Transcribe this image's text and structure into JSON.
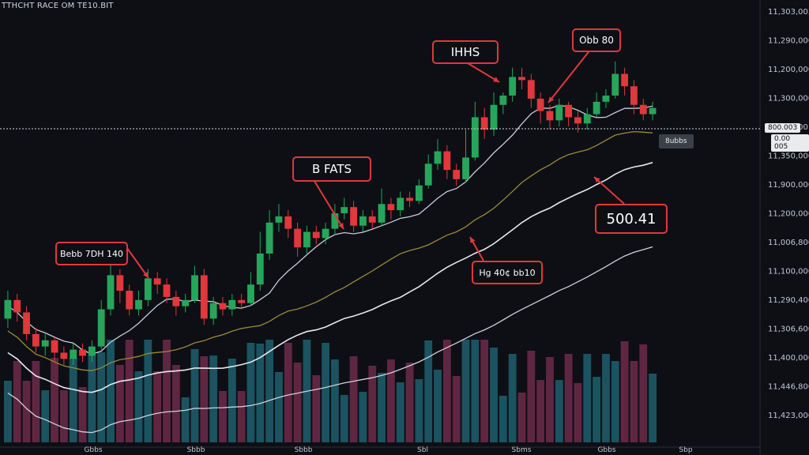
{
  "header": {
    "title": "ТТНСНТ RACE ОМ ТЕ10.ВІТ"
  },
  "chart_data": {
    "type": "candlestick",
    "price_axis_labels": [
      "11,303,003",
      "11,290,000",
      "11,200,000",
      "11,300,000",
      "11,300,00",
      "11,350,000",
      "11,900,000",
      "11,200,000",
      "11,006,800",
      "11,100,000",
      "11,290,400",
      "11,306,600",
      "11,400,000",
      "11,446,800",
      "11,423,000"
    ],
    "time_axis_labels": [
      "Gbbs",
      "Sbbb",
      "Sbbb",
      "Sbl",
      "Sbms",
      "Gbbs",
      "Sbp"
    ],
    "current_price_labels": [
      "800.003",
      "0.00 005",
      "8ubbs"
    ],
    "annotations": [
      {
        "text": "IHHS",
        "color": "#e0383c"
      },
      {
        "text": "Obb 80",
        "color": "#e0383c"
      },
      {
        "text": "B FATS",
        "color": "#e0383c"
      },
      {
        "text": "500.41",
        "color": "#e0383c"
      },
      {
        "text": "Bebb 7DH 140",
        "color": "#e0383c"
      },
      {
        "text": "Hg 40¢ bb10",
        "color": "#e0383c"
      }
    ],
    "candles": [
      {
        "o": 0.27,
        "c": 0.33,
        "h": 0.36,
        "l": 0.24
      },
      {
        "o": 0.33,
        "c": 0.29,
        "h": 0.35,
        "l": 0.26
      },
      {
        "o": 0.29,
        "c": 0.22,
        "h": 0.31,
        "l": 0.2
      },
      {
        "o": 0.22,
        "c": 0.18,
        "h": 0.24,
        "l": 0.16
      },
      {
        "o": 0.18,
        "c": 0.2,
        "h": 0.22,
        "l": 0.15
      },
      {
        "o": 0.2,
        "c": 0.16,
        "h": 0.21,
        "l": 0.13
      },
      {
        "o": 0.16,
        "c": 0.14,
        "h": 0.18,
        "l": 0.12
      },
      {
        "o": 0.14,
        "c": 0.17,
        "h": 0.19,
        "l": 0.12
      },
      {
        "o": 0.17,
        "c": 0.15,
        "h": 0.19,
        "l": 0.13
      },
      {
        "o": 0.15,
        "c": 0.18,
        "h": 0.2,
        "l": 0.13
      },
      {
        "o": 0.18,
        "c": 0.3,
        "h": 0.33,
        "l": 0.17
      },
      {
        "o": 0.3,
        "c": 0.41,
        "h": 0.45,
        "l": 0.28
      },
      {
        "o": 0.41,
        "c": 0.36,
        "h": 0.43,
        "l": 0.32
      },
      {
        "o": 0.36,
        "c": 0.3,
        "h": 0.38,
        "l": 0.28
      },
      {
        "o": 0.3,
        "c": 0.33,
        "h": 0.36,
        "l": 0.28
      },
      {
        "o": 0.33,
        "c": 0.4,
        "h": 0.43,
        "l": 0.31
      },
      {
        "o": 0.4,
        "c": 0.38,
        "h": 0.42,
        "l": 0.35
      },
      {
        "o": 0.38,
        "c": 0.34,
        "h": 0.4,
        "l": 0.32
      },
      {
        "o": 0.34,
        "c": 0.31,
        "h": 0.36,
        "l": 0.28
      },
      {
        "o": 0.31,
        "c": 0.33,
        "h": 0.35,
        "l": 0.29
      },
      {
        "o": 0.33,
        "c": 0.41,
        "h": 0.44,
        "l": 0.32
      },
      {
        "o": 0.41,
        "c": 0.27,
        "h": 0.43,
        "l": 0.25
      },
      {
        "o": 0.27,
        "c": 0.32,
        "h": 0.34,
        "l": 0.25
      },
      {
        "o": 0.32,
        "c": 0.3,
        "h": 0.34,
        "l": 0.28
      },
      {
        "o": 0.3,
        "c": 0.33,
        "h": 0.35,
        "l": 0.28
      },
      {
        "o": 0.33,
        "c": 0.32,
        "h": 0.35,
        "l": 0.3
      },
      {
        "o": 0.32,
        "c": 0.38,
        "h": 0.42,
        "l": 0.31
      },
      {
        "o": 0.38,
        "c": 0.48,
        "h": 0.55,
        "l": 0.36
      },
      {
        "o": 0.48,
        "c": 0.58,
        "h": 0.62,
        "l": 0.46
      },
      {
        "o": 0.58,
        "c": 0.6,
        "h": 0.64,
        "l": 0.55
      },
      {
        "o": 0.6,
        "c": 0.56,
        "h": 0.62,
        "l": 0.53
      },
      {
        "o": 0.56,
        "c": 0.5,
        "h": 0.58,
        "l": 0.47
      },
      {
        "o": 0.5,
        "c": 0.55,
        "h": 0.57,
        "l": 0.48
      },
      {
        "o": 0.55,
        "c": 0.53,
        "h": 0.57,
        "l": 0.51
      },
      {
        "o": 0.53,
        "c": 0.56,
        "h": 0.58,
        "l": 0.51
      },
      {
        "o": 0.56,
        "c": 0.61,
        "h": 0.64,
        "l": 0.54
      },
      {
        "o": 0.61,
        "c": 0.63,
        "h": 0.66,
        "l": 0.59
      },
      {
        "o": 0.63,
        "c": 0.57,
        "h": 0.65,
        "l": 0.55
      },
      {
        "o": 0.57,
        "c": 0.6,
        "h": 0.62,
        "l": 0.55
      },
      {
        "o": 0.6,
        "c": 0.58,
        "h": 0.62,
        "l": 0.56
      },
      {
        "o": 0.58,
        "c": 0.64,
        "h": 0.69,
        "l": 0.57
      },
      {
        "o": 0.64,
        "c": 0.62,
        "h": 0.66,
        "l": 0.59
      },
      {
        "o": 0.62,
        "c": 0.66,
        "h": 0.68,
        "l": 0.6
      },
      {
        "o": 0.66,
        "c": 0.65,
        "h": 0.68,
        "l": 0.63
      },
      {
        "o": 0.65,
        "c": 0.7,
        "h": 0.72,
        "l": 0.64
      },
      {
        "o": 0.7,
        "c": 0.77,
        "h": 0.8,
        "l": 0.69
      },
      {
        "o": 0.77,
        "c": 0.81,
        "h": 0.85,
        "l": 0.75
      },
      {
        "o": 0.81,
        "c": 0.75,
        "h": 0.83,
        "l": 0.72
      },
      {
        "o": 0.75,
        "c": 0.72,
        "h": 0.77,
        "l": 0.7
      },
      {
        "o": 0.72,
        "c": 0.79,
        "h": 0.88,
        "l": 0.71
      },
      {
        "o": 0.79,
        "c": 0.92,
        "h": 0.97,
        "l": 0.78
      },
      {
        "o": 0.92,
        "c": 0.88,
        "h": 0.95,
        "l": 0.85
      },
      {
        "o": 0.88,
        "c": 0.96,
        "h": 1.0,
        "l": 0.86
      },
      {
        "o": 0.96,
        "c": 0.99,
        "h": 1.0,
        "l": 0.93
      },
      {
        "o": 0.99,
        "c": 1.05,
        "h": 1.08,
        "l": 0.97
      },
      {
        "o": 1.05,
        "c": 1.04,
        "h": 1.08,
        "l": 1.01
      },
      {
        "o": 1.04,
        "c": 0.98,
        "h": 1.06,
        "l": 0.95
      },
      {
        "o": 0.98,
        "c": 0.94,
        "h": 1.0,
        "l": 0.9
      },
      {
        "o": 0.94,
        "c": 0.91,
        "h": 0.96,
        "l": 0.88
      },
      {
        "o": 0.91,
        "c": 0.96,
        "h": 0.98,
        "l": 0.89
      },
      {
        "o": 0.96,
        "c": 0.92,
        "h": 0.97,
        "l": 0.89
      },
      {
        "o": 0.92,
        "c": 0.9,
        "h": 0.94,
        "l": 0.87
      },
      {
        "o": 0.9,
        "c": 0.93,
        "h": 0.95,
        "l": 0.88
      },
      {
        "o": 0.93,
        "c": 0.97,
        "h": 1.0,
        "l": 0.92
      },
      {
        "o": 0.97,
        "c": 0.99,
        "h": 1.01,
        "l": 0.95
      },
      {
        "o": 0.99,
        "c": 1.06,
        "h": 1.1,
        "l": 0.98
      },
      {
        "o": 1.06,
        "c": 1.02,
        "h": 1.08,
        "l": 0.99
      },
      {
        "o": 1.02,
        "c": 0.96,
        "h": 1.04,
        "l": 0.93
      },
      {
        "o": 0.96,
        "c": 0.93,
        "h": 0.98,
        "l": 0.91
      },
      {
        "o": 0.93,
        "c": 0.95,
        "h": 0.97,
        "l": 0.91
      }
    ],
    "grid": false,
    "legend": "none",
    "colors": {
      "up": "#26a65b",
      "down": "#e0383c",
      "ma_fast": "#c9ccd4",
      "ma_mid": "#9a8a3a",
      "ma_slow": "#e6e8ec",
      "ma_long": "#cfd2d8",
      "volume_up": "#1f5f6e",
      "volume_down": "#6e2a4a",
      "background": "#0d0f14"
    }
  }
}
